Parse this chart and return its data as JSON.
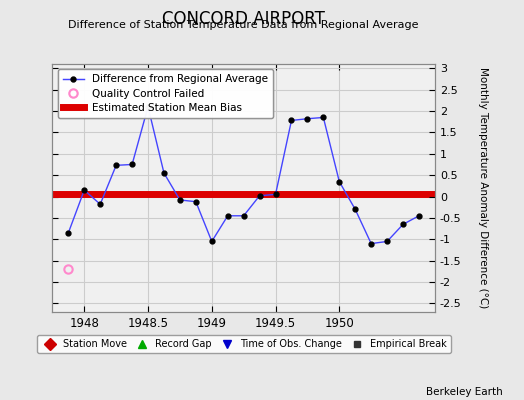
{
  "title": "CONCORD AIRPORT",
  "subtitle": "Difference of Station Temperature Data from Regional Average",
  "ylabel": "Monthly Temperature Anomaly Difference (°C)",
  "xlabel_credit": "Berkeley Earth",
  "xlim": [
    1947.75,
    1950.75
  ],
  "ylim": [
    -2.7,
    3.1
  ],
  "yticks": [
    -2.5,
    -2,
    -1.5,
    -1,
    -0.5,
    0,
    0.5,
    1,
    1.5,
    2,
    2.5,
    3
  ],
  "xticks": [
    1948,
    1948.5,
    1949,
    1949.5,
    1950
  ],
  "xtick_labels": [
    "1948",
    "1948.5",
    "1949",
    "1949.5",
    "1950"
  ],
  "bias_value": 0.05,
  "line_color": "#4444ff",
  "marker_color": "#000000",
  "bias_color": "#dd0000",
  "background_color": "#e8e8e8",
  "plot_bg_color": "#f0f0f0",
  "data_x": [
    1947.875,
    1948.0,
    1948.125,
    1948.25,
    1948.375,
    1948.5,
    1948.625,
    1948.75,
    1948.875,
    1949.0,
    1949.125,
    1949.25,
    1949.375,
    1949.5,
    1949.625,
    1949.75,
    1949.875,
    1950.0,
    1950.125,
    1950.25,
    1950.375,
    1950.5,
    1950.625
  ],
  "data_y": [
    -0.85,
    0.15,
    -0.18,
    0.73,
    0.75,
    2.1,
    0.55,
    -0.08,
    -0.12,
    -1.05,
    -0.45,
    -0.45,
    0.02,
    0.05,
    1.78,
    1.82,
    1.85,
    0.35,
    -0.3,
    -1.1,
    -1.05,
    -0.65,
    -0.45
  ],
  "qc_fail_x": [
    1947.875
  ],
  "qc_fail_y": [
    -1.7
  ],
  "qc_color": "#ff88cc",
  "grid_color": "#cccccc",
  "grid_linewidth": 0.8
}
